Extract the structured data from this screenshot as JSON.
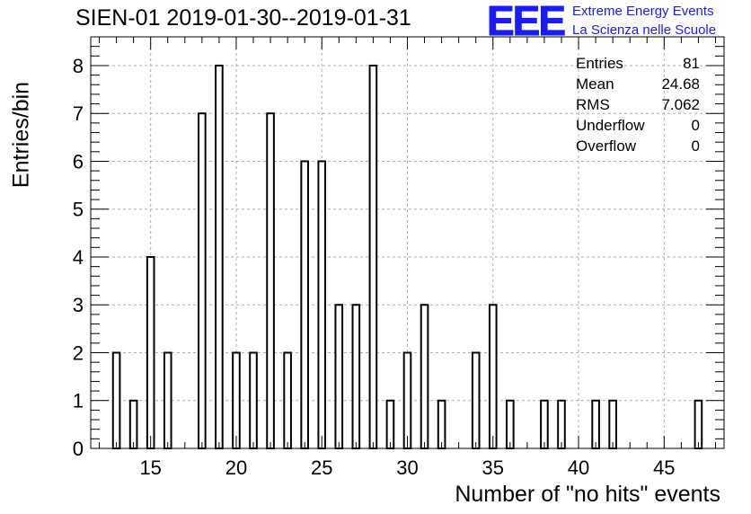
{
  "header": {
    "title": "SIEN-01 2019-01-30--2019-01-31",
    "logo_text": "EEE",
    "logo_line1": "Extreme Energy Events",
    "logo_line2": "La Scienza nelle Scuole"
  },
  "stats_box": [
    {
      "label": "Entries",
      "value": "81"
    },
    {
      "label": "Mean",
      "value": "24.68"
    },
    {
      "label": "RMS",
      "value": "7.062"
    },
    {
      "label": "Underflow",
      "value": "0"
    },
    {
      "label": "Overflow",
      "value": "0"
    }
  ],
  "colors": {
    "bar_stroke": "#000000",
    "grid": "#b0b0b0",
    "logo": "#1a1aff"
  },
  "chart_data": {
    "type": "bar",
    "title": "SIEN-01 2019-01-30--2019-01-31",
    "xlabel": "Number of \"no hits\" events",
    "ylabel": "Entries/bin",
    "xlim": [
      11.5,
      48.5
    ],
    "ylim": [
      0,
      8.6
    ],
    "x_ticks": [
      15,
      20,
      25,
      30,
      35,
      40,
      45
    ],
    "y_ticks": [
      0,
      1,
      2,
      3,
      4,
      5,
      6,
      7,
      8
    ],
    "grid": true,
    "categories": [
      13,
      14,
      15,
      16,
      18,
      19,
      20,
      21,
      22,
      23,
      24,
      25,
      26,
      27,
      28,
      29,
      30,
      31,
      32,
      34,
      35,
      36,
      38,
      39,
      41,
      42,
      47
    ],
    "values": [
      2,
      1,
      4,
      2,
      7,
      8,
      2,
      2,
      7,
      2,
      6,
      6,
      3,
      3,
      8,
      1,
      2,
      3,
      1,
      2,
      3,
      1,
      1,
      1,
      1,
      1,
      1
    ]
  }
}
